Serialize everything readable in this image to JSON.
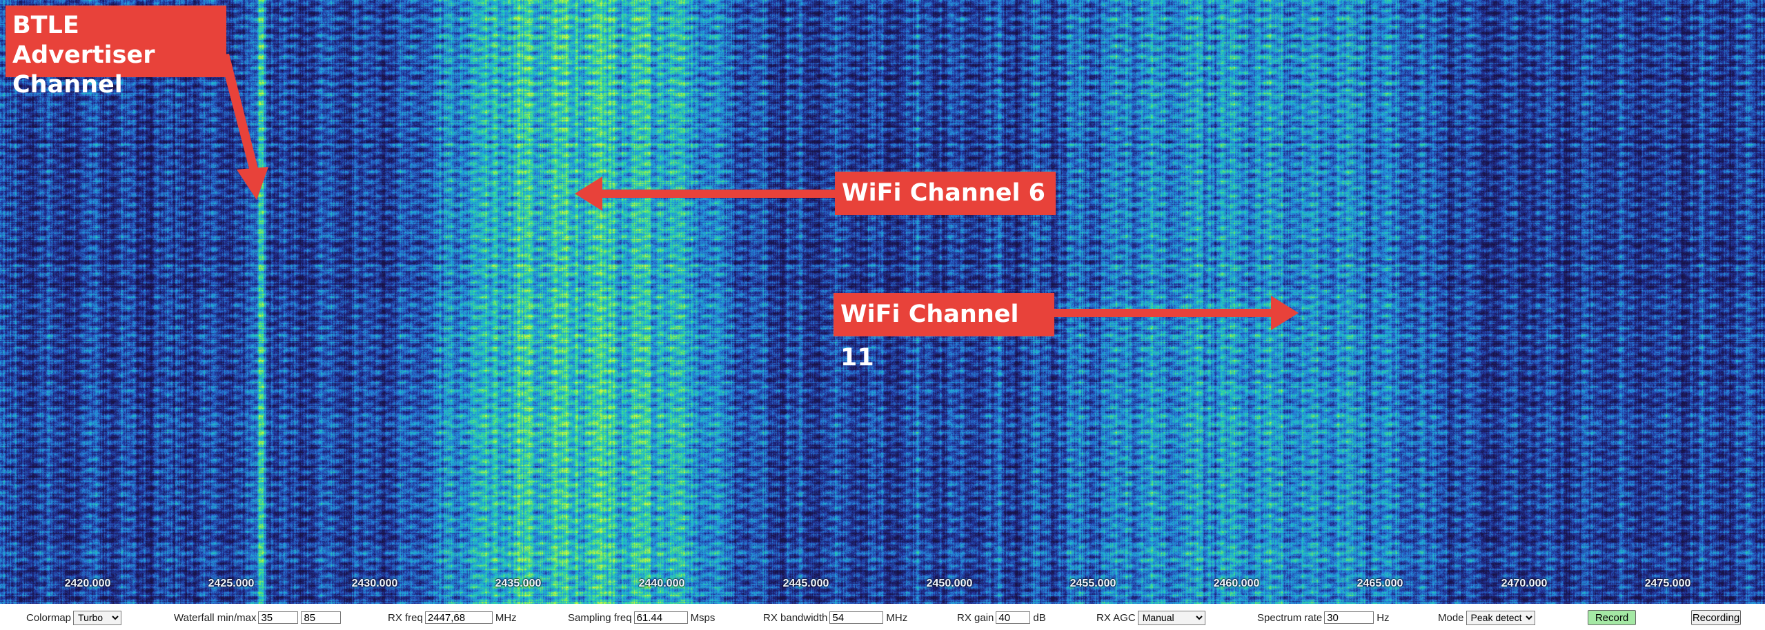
{
  "waterfall": {
    "freq_labels": [
      "2420.000",
      "2425.000",
      "2430.000",
      "2435.000",
      "2440.000",
      "2445.000",
      "2450.000",
      "2455.000",
      "2460.000",
      "2465.000",
      "2470.000",
      "2475.000"
    ]
  },
  "annotations": {
    "btle_line1": "BTLE Advertiser",
    "btle_line2": "Channel",
    "wifi6": "WiFi Channel 6",
    "wifi11": "WiFi Channel 11",
    "color": "#e8423a"
  },
  "controls": {
    "colormap": {
      "label": "Colormap",
      "value": "Turbo"
    },
    "waterfall_minmax": {
      "label": "Waterfall min/max",
      "min": "35",
      "max": "85"
    },
    "rx_freq": {
      "label": "RX freq",
      "value": "2447,68",
      "unit": "MHz"
    },
    "sampling_freq": {
      "label": "Sampling freq",
      "value": "61.44",
      "unit": "Msps"
    },
    "rx_bandwidth": {
      "label": "RX bandwidth",
      "value": "54",
      "unit": "MHz"
    },
    "rx_gain": {
      "label": "RX gain",
      "value": "40",
      "unit": "dB"
    },
    "rx_agc": {
      "label": "RX AGC",
      "value": "Manual"
    },
    "spectrum_rate": {
      "label": "Spectrum rate",
      "value": "30",
      "unit": "Hz"
    },
    "mode": {
      "label": "Mode",
      "value": "Peak detect"
    },
    "record_label": "Record",
    "recording_label": "Recording",
    "record_color": "#a4e8a4"
  }
}
